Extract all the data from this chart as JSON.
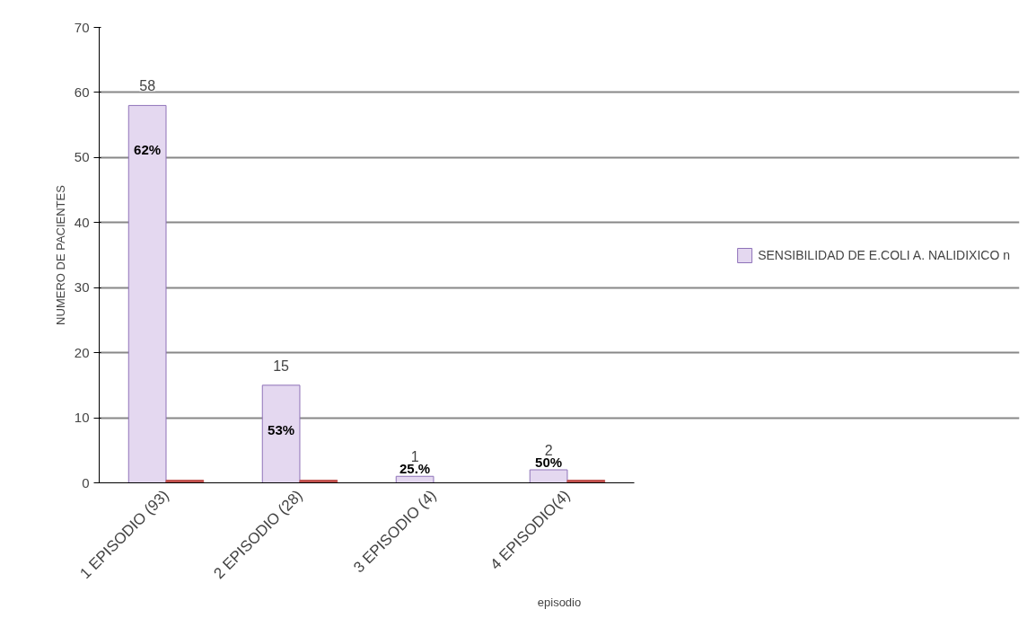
{
  "chart_data": {
    "type": "bar",
    "categories": [
      "1 EPISODIO (93)",
      "2 EPISODIO (28)",
      "3 EPISODIO (4)",
      "4 EPISODIO(4)"
    ],
    "series": [
      {
        "name": "SENSIBILIDAD DE E.COLI A. NALIDIXICO n",
        "color": "#e4d8f0",
        "values": [
          58,
          15,
          1,
          2
        ],
        "value_labels": [
          "58",
          "15",
          "1",
          "2"
        ]
      },
      {
        "color": "#c0504d",
        "values": [
          0.4,
          0.4,
          null,
          0.4
        ]
      }
    ],
    "annotations": [
      {
        "text": "62%",
        "x": "1 EPISODIO (93)",
        "y": 50
      },
      {
        "text": "53%",
        "x": "2 EPISODIO (28)",
        "y": 7
      },
      {
        "text": "25.%",
        "x": "3 EPISODIO (4)",
        "y": 1
      },
      {
        "text": "50%",
        "x": "4 EPISODIO(4)",
        "y": 2
      }
    ],
    "xlabel": "episodio",
    "ylabel": "NUMERO DE PACIENTES",
    "ylim": [
      0,
      70
    ],
    "yticks": [
      0,
      10,
      20,
      30,
      40,
      50,
      60,
      70
    ],
    "grid": "y",
    "legend": "right"
  }
}
